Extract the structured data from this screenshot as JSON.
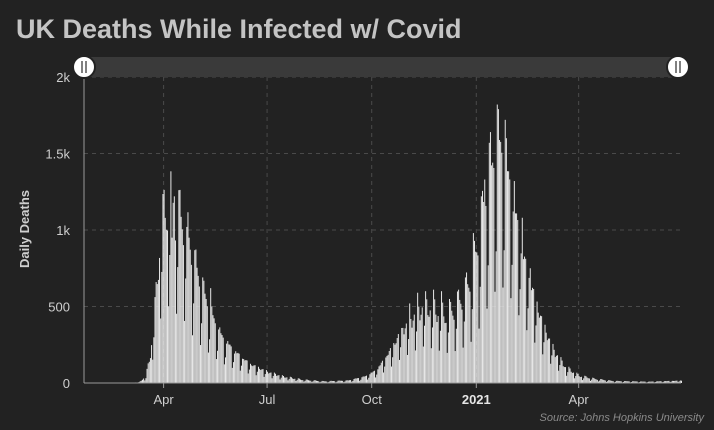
{
  "chart_data": {
    "type": "bar",
    "title": "UK Deaths While Infected w/ Covid",
    "ylabel": "Daily Deaths",
    "source": "Source: Johns Hopkins University",
    "ylim": [
      0,
      2000
    ],
    "y_ticks": [
      {
        "value": 0,
        "label": "0"
      },
      {
        "value": 500,
        "label": "500"
      },
      {
        "value": 1000,
        "label": "1k"
      },
      {
        "value": 1500,
        "label": "1.5k"
      },
      {
        "value": 2000,
        "label": "2k"
      }
    ],
    "x_ticks": [
      {
        "date": "2020-04-01",
        "label": "Apr",
        "bold": false
      },
      {
        "date": "2020-07-01",
        "label": "Jul",
        "bold": false
      },
      {
        "date": "2020-10-01",
        "label": "Oct",
        "bold": false
      },
      {
        "date": "2021-01-01",
        "label": "2021",
        "bold": true
      },
      {
        "date": "2021-04-01",
        "label": "Apr",
        "bold": false
      }
    ],
    "x_range": [
      "2020-01-22",
      "2021-06-30"
    ],
    "grid": true,
    "range_slider": true,
    "bar_color": "#ececec",
    "series": [
      {
        "anchors": [
          [
            "2020-03-01",
            0
          ],
          [
            "2020-03-10",
            5
          ],
          [
            "2020-03-16",
            40
          ],
          [
            "2020-03-20",
            180
          ],
          [
            "2020-03-24",
            450
          ],
          [
            "2020-03-28",
            850
          ],
          [
            "2020-04-01",
            1030
          ],
          [
            "2020-04-05",
            1100
          ],
          [
            "2020-04-09",
            1110
          ],
          [
            "2020-04-12",
            1030
          ],
          [
            "2020-04-16",
            1000
          ],
          [
            "2020-04-20",
            950
          ],
          [
            "2020-04-25",
            800
          ],
          [
            "2020-05-01",
            650
          ],
          [
            "2020-05-08",
            500
          ],
          [
            "2020-05-15",
            380
          ],
          [
            "2020-05-22",
            280
          ],
          [
            "2020-06-01",
            200
          ],
          [
            "2020-06-15",
            120
          ],
          [
            "2020-07-01",
            70
          ],
          [
            "2020-07-15",
            40
          ],
          [
            "2020-08-01",
            20
          ],
          [
            "2020-08-20",
            10
          ],
          [
            "2020-09-10",
            15
          ],
          [
            "2020-09-25",
            40
          ],
          [
            "2020-10-05",
            80
          ],
          [
            "2020-10-15",
            180
          ],
          [
            "2020-10-25",
            300
          ],
          [
            "2020-11-05",
            400
          ],
          [
            "2020-11-15",
            480
          ],
          [
            "2020-11-25",
            460
          ],
          [
            "2020-12-05",
            420
          ],
          [
            "2020-12-15",
            480
          ],
          [
            "2020-12-25",
            600
          ],
          [
            "2021-01-01",
            800
          ],
          [
            "2021-01-08",
            1100
          ],
          [
            "2021-01-15",
            1300
          ],
          [
            "2021-01-20",
            1450
          ],
          [
            "2021-01-25",
            1350
          ],
          [
            "2021-02-01",
            1150
          ],
          [
            "2021-02-10",
            800
          ],
          [
            "2021-02-20",
            550
          ],
          [
            "2021-03-01",
            350
          ],
          [
            "2021-03-10",
            200
          ],
          [
            "2021-03-20",
            100
          ],
          [
            "2021-04-01",
            45
          ],
          [
            "2021-04-15",
            25
          ],
          [
            "2021-05-01",
            12
          ],
          [
            "2021-06-01",
            8
          ],
          [
            "2021-06-30",
            15
          ]
        ]
      }
    ],
    "spikes": [
      [
        "2020-04-08",
        950
      ],
      [
        "2020-04-10",
        1220
      ],
      [
        "2020-04-21",
        1020
      ],
      [
        "2020-05-05",
        690
      ],
      [
        "2020-05-12",
        620
      ],
      [
        "2020-10-28",
        360
      ],
      [
        "2020-11-03",
        520
      ],
      [
        "2020-11-10",
        590
      ],
      [
        "2020-11-17",
        600
      ],
      [
        "2020-11-24",
        610
      ],
      [
        "2020-12-01",
        600
      ],
      [
        "2020-12-09",
        530
      ],
      [
        "2020-12-16",
        610
      ],
      [
        "2020-12-22",
        690
      ],
      [
        "2020-12-29",
        980
      ],
      [
        "2021-01-05",
        1220
      ],
      [
        "2021-01-08",
        1330
      ],
      [
        "2021-01-12",
        1570
      ],
      [
        "2021-01-13",
        1640
      ],
      [
        "2021-01-19",
        1820
      ],
      [
        "2021-01-20",
        1790
      ],
      [
        "2021-01-26",
        1720
      ],
      [
        "2021-01-27",
        1600
      ],
      [
        "2021-02-03",
        1320
      ],
      [
        "2021-02-10",
        1080
      ],
      [
        "2021-02-17",
        750
      ],
      [
        "2021-02-24",
        460
      ]
    ]
  }
}
